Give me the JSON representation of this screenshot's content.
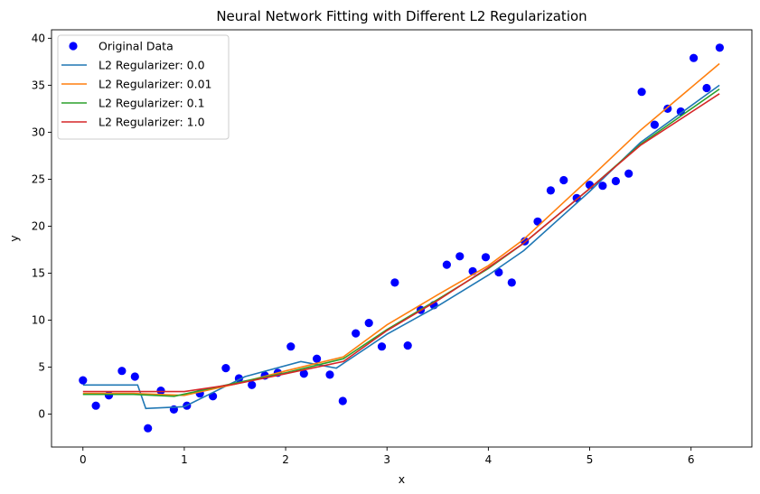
{
  "chart_data": {
    "type": "line",
    "title": "Neural Network Fitting with Different L2 Regularization",
    "xlabel": "x",
    "ylabel": "y",
    "xlim": [
      -0.31,
      6.6
    ],
    "ylim": [
      -3.5,
      40.9
    ],
    "xticks": [
      0,
      1,
      2,
      3,
      4,
      5,
      6
    ],
    "yticks": [
      0,
      5,
      10,
      15,
      20,
      25,
      30,
      35,
      40
    ],
    "grid": false,
    "legend_position": "top-left",
    "scatter": {
      "name": "Original Data",
      "color": "#0000ff",
      "x": [
        0.0,
        0.128,
        0.256,
        0.385,
        0.513,
        0.641,
        0.769,
        0.897,
        1.026,
        1.154,
        1.282,
        1.41,
        1.539,
        1.667,
        1.795,
        1.923,
        2.051,
        2.18,
        2.308,
        2.436,
        2.564,
        2.692,
        2.821,
        2.949,
        3.077,
        3.205,
        3.333,
        3.462,
        3.59,
        3.718,
        3.846,
        3.974,
        4.103,
        4.231,
        4.359,
        4.487,
        4.615,
        4.744,
        4.872,
        5.0,
        5.128,
        5.257,
        5.385,
        5.513,
        5.641,
        5.769,
        5.898,
        6.026,
        6.154,
        6.283
      ],
      "y": [
        3.6,
        0.9,
        2.0,
        4.6,
        4.0,
        -1.5,
        2.5,
        0.5,
        0.9,
        2.2,
        1.9,
        4.9,
        3.8,
        3.1,
        4.1,
        4.4,
        7.2,
        4.3,
        5.9,
        4.2,
        1.4,
        8.6,
        9.7,
        7.2,
        14.0,
        7.3,
        11.1,
        11.6,
        15.9,
        16.8,
        15.2,
        16.7,
        15.1,
        14.0,
        18.4,
        20.5,
        23.8,
        24.9,
        23.0,
        24.4,
        24.3,
        24.8,
        25.6,
        34.3,
        30.8,
        32.5,
        32.2,
        37.9,
        34.7,
        39.0
      ]
    },
    "series": [
      {
        "name": "L2 Regularizer: 0.0",
        "color": "#1f77b4",
        "x": [
          0.0,
          0.54,
          0.62,
          1.0,
          1.6,
          2.15,
          2.5,
          3.0,
          3.5,
          4.0,
          4.35,
          5.0,
          5.5,
          6.28
        ],
        "y": [
          3.1,
          3.1,
          0.6,
          0.8,
          4.0,
          5.6,
          4.9,
          8.5,
          11.5,
          14.8,
          17.4,
          23.7,
          28.9,
          35.0
        ]
      },
      {
        "name": "L2 Regularizer: 0.01",
        "color": "#ff7f0e",
        "x": [
          0.0,
          0.5,
          1.0,
          1.5,
          2.0,
          2.57,
          3.0,
          3.5,
          4.0,
          4.35,
          5.0,
          5.5,
          6.28
        ],
        "y": [
          2.2,
          2.2,
          2.0,
          3.2,
          4.6,
          6.1,
          9.5,
          12.7,
          15.8,
          18.6,
          25.1,
          30.2,
          37.3
        ]
      },
      {
        "name": "L2 Regularizer: 0.1",
        "color": "#2ca02c",
        "x": [
          0.0,
          0.5,
          0.9,
          1.5,
          2.0,
          2.57,
          3.0,
          3.5,
          4.0,
          4.35,
          5.0,
          5.5,
          6.28
        ],
        "y": [
          2.1,
          2.1,
          1.9,
          3.3,
          4.4,
          5.9,
          9.0,
          12.2,
          15.5,
          18.2,
          24.0,
          28.7,
          34.6
        ]
      },
      {
        "name": "L2 Regularizer: 1.0",
        "color": "#d62728",
        "x": [
          0.0,
          0.5,
          1.0,
          1.5,
          2.0,
          2.57,
          3.0,
          3.5,
          4.0,
          4.35,
          5.0,
          5.5,
          6.28
        ],
        "y": [
          2.4,
          2.4,
          2.4,
          3.2,
          4.3,
          5.6,
          8.9,
          12.1,
          15.6,
          18.2,
          24.0,
          28.6,
          34.1
        ]
      }
    ]
  }
}
